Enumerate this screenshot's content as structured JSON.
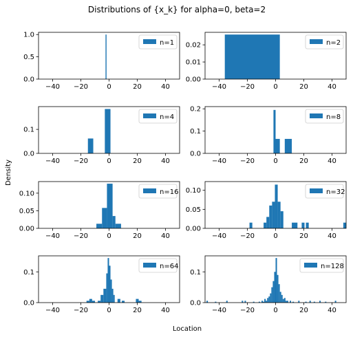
{
  "figure": {
    "suptitle": "Distributions of {x_k} for alpha=0, beta=2",
    "xlabel": "Location",
    "ylabel": "Density",
    "bar_color": "#1f77b4"
  },
  "chart_data": [
    {
      "type": "bar",
      "legend": "n=1",
      "legend_position": "top-right",
      "xlim": [
        -50,
        50
      ],
      "ylim": [
        0,
        1.05
      ],
      "xticks": [
        -40,
        -20,
        0,
        20,
        40
      ],
      "xtick_labels": [
        "−40",
        "−20",
        "0",
        "20",
        "40"
      ],
      "yticks": [
        0,
        0.5,
        1.0
      ],
      "ytick_labels": [
        "0.0",
        "0.5",
        "1.0"
      ],
      "bins": [
        [
          -2.5,
          -1.8,
          1.0
        ]
      ]
    },
    {
      "type": "bar",
      "legend": "n=2",
      "legend_position": "top-right",
      "xlim": [
        -50,
        50
      ],
      "ylim": [
        0,
        0.0273
      ],
      "xticks": [
        -40,
        -20,
        0,
        20,
        40
      ],
      "xtick_labels": [
        "−40",
        "−20",
        "0",
        "20",
        "40"
      ],
      "yticks": [
        0,
        0.01,
        0.02
      ],
      "ytick_labels": [
        "0.00",
        "0.01",
        "0.02"
      ],
      "bins": [
        [
          -36,
          3,
          0.026
        ]
      ]
    },
    {
      "type": "bar",
      "legend": "n=4",
      "legend_position": "top-right",
      "xlim": [
        -50,
        50
      ],
      "ylim": [
        0,
        0.195
      ],
      "xticks": [
        -40,
        -20,
        0,
        20,
        40
      ],
      "xtick_labels": [
        "−40",
        "−20",
        "0",
        "20",
        "40"
      ],
      "yticks": [
        0,
        0.1
      ],
      "ytick_labels": [
        "0.0",
        "0.1"
      ],
      "bins": [
        [
          -15,
          -11.2,
          0.062
        ],
        [
          -3,
          1,
          0.185
        ]
      ]
    },
    {
      "type": "bar",
      "legend": "n=8",
      "legend_position": "top-right",
      "xlim": [
        -50,
        50
      ],
      "ylim": [
        0,
        0.21
      ],
      "xticks": [
        -40,
        -20,
        0,
        20,
        40
      ],
      "xtick_labels": [
        "−40",
        "−20",
        "0",
        "20",
        "40"
      ],
      "yticks": [
        0,
        0.1,
        0.2
      ],
      "ytick_labels": [
        "0.0",
        "0.1",
        "0.2"
      ],
      "bins": [
        [
          -1.5,
          0,
          0.195
        ],
        [
          0,
          3,
          0.065
        ],
        [
          6.5,
          11.5,
          0.065
        ]
      ]
    },
    {
      "type": "bar",
      "legend": "n=16",
      "legend_position": "top-right",
      "xlim": [
        -50,
        50
      ],
      "ylim": [
        0,
        0.133
      ],
      "xticks": [
        -40,
        -20,
        0,
        20,
        40
      ],
      "xtick_labels": [
        "−40",
        "−20",
        "0",
        "20",
        "40"
      ],
      "yticks": [
        0,
        0.05,
        0.1
      ],
      "ytick_labels": [
        "0.00",
        "0.05",
        "0.10"
      ],
      "bins": [
        [
          -9,
          -5,
          0.013
        ],
        [
          -5,
          -1.5,
          0.058
        ],
        [
          -1.5,
          2.5,
          0.127
        ],
        [
          2.5,
          4.5,
          0.035
        ],
        [
          4.5,
          8.5,
          0.013
        ]
      ]
    },
    {
      "type": "bar",
      "legend": "n=32",
      "legend_position": "top-right",
      "xlim": [
        -50,
        50
      ],
      "ylim": [
        0,
        0.123
      ],
      "xticks": [
        -40,
        -20,
        0,
        20,
        40
      ],
      "xtick_labels": [
        "−40",
        "−20",
        "0",
        "20",
        "40"
      ],
      "yticks": [
        0,
        0.05,
        0.1
      ],
      "ytick_labels": [
        "0.00",
        "0.05",
        "0.10"
      ],
      "bins": [
        [
          -18.5,
          -16.5,
          0.015
        ],
        [
          -8.5,
          -6.5,
          0.015
        ],
        [
          -6.5,
          -4.5,
          0.03
        ],
        [
          -4.5,
          -2.5,
          0.06
        ],
        [
          -2.5,
          -0.5,
          0.07
        ],
        [
          -0.5,
          1.5,
          0.115
        ],
        [
          1.5,
          3.5,
          0.07
        ],
        [
          3.5,
          5.5,
          0.045
        ],
        [
          11.5,
          15.5,
          0.015
        ],
        [
          18.5,
          20.5,
          0.015
        ],
        [
          21.5,
          23.5,
          0.015
        ],
        [
          48,
          50,
          0.015
        ]
      ]
    },
    {
      "type": "bar",
      "legend": "n=64",
      "legend_position": "top-right",
      "xlim": [
        -50,
        50
      ],
      "ylim": [
        0,
        0.152
      ],
      "xticks": [
        -40,
        -20,
        0,
        20,
        40
      ],
      "xtick_labels": [
        "−40",
        "−20",
        "0",
        "20",
        "40"
      ],
      "yticks": [
        0,
        0.1
      ],
      "ytick_labels": [
        "0.0",
        "0.1"
      ],
      "bins": [
        [
          -16,
          -14,
          0.006
        ],
        [
          -14,
          -12,
          0.012
        ],
        [
          -12,
          -10,
          0.006
        ],
        [
          -8,
          -6,
          0.006
        ],
        [
          -6,
          -4,
          0.025
        ],
        [
          -4,
          -2,
          0.045
        ],
        [
          -2,
          -1,
          0.095
        ],
        [
          -1,
          0,
          0.145
        ],
        [
          0,
          1,
          0.12
        ],
        [
          1,
          2,
          0.075
        ],
        [
          2,
          3,
          0.045
        ],
        [
          3,
          4,
          0.025
        ],
        [
          6,
          8,
          0.012
        ],
        [
          9,
          11,
          0.006
        ],
        [
          19,
          21,
          0.012
        ],
        [
          21,
          23,
          0.006
        ]
      ]
    },
    {
      "type": "bar",
      "legend": "n=128",
      "legend_position": "top-right",
      "xlim": [
        -50,
        50
      ],
      "ylim": [
        0,
        0.152
      ],
      "xticks": [
        -40,
        -20,
        0,
        20,
        40
      ],
      "xtick_labels": [
        "−40",
        "−20",
        "0",
        "20",
        "40"
      ],
      "yticks": [
        0,
        0.1
      ],
      "ytick_labels": [
        "0.0",
        "0.1"
      ],
      "bins": [
        [
          -49,
          -48,
          0.006
        ],
        [
          -43,
          -42,
          0.003
        ],
        [
          -35,
          -34,
          0.006
        ],
        [
          -24,
          -23,
          0.006
        ],
        [
          -22,
          -21,
          0.006
        ],
        [
          -16,
          -15,
          0.003
        ],
        [
          -12,
          -11,
          0.003
        ],
        [
          -10,
          -9,
          0.006
        ],
        [
          -9,
          -8,
          0.003
        ],
        [
          -8,
          -7,
          0.012
        ],
        [
          -7,
          -6,
          0.006
        ],
        [
          -6,
          -5,
          0.015
        ],
        [
          -5,
          -4,
          0.02
        ],
        [
          -4,
          -3,
          0.03
        ],
        [
          -3,
          -2,
          0.05
        ],
        [
          -2,
          -1,
          0.07
        ],
        [
          -1,
          0,
          0.1
        ],
        [
          0,
          1,
          0.145
        ],
        [
          1,
          2,
          0.09
        ],
        [
          2,
          3,
          0.06
        ],
        [
          3,
          4,
          0.035
        ],
        [
          4,
          5,
          0.025
        ],
        [
          5,
          6,
          0.012
        ],
        [
          6,
          7,
          0.015
        ],
        [
          7,
          8,
          0.006
        ],
        [
          8,
          9,
          0.006
        ],
        [
          10,
          11,
          0.006
        ],
        [
          12,
          13,
          0.003
        ],
        [
          16,
          17,
          0.006
        ],
        [
          21,
          22,
          0.003
        ],
        [
          24,
          25,
          0.006
        ],
        [
          27,
          28,
          0.003
        ],
        [
          31,
          32,
          0.006
        ],
        [
          35,
          36,
          0.003
        ],
        [
          42,
          43,
          0.006
        ]
      ]
    }
  ]
}
